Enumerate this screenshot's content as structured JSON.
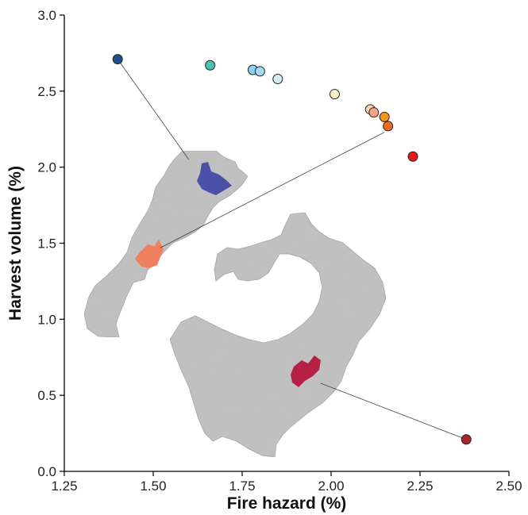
{
  "chart_data": {
    "type": "scatter",
    "title": "",
    "xlabel": "Fire hazard (%)",
    "ylabel": "Harvest volume (%)",
    "xlim": [
      1.25,
      2.5
    ],
    "ylim": [
      0.0,
      3.0
    ],
    "xticks": [
      "1.25",
      "1.50",
      "1.75",
      "2.00",
      "2.25",
      "2.50"
    ],
    "yticks": [
      "0.0",
      "0.5",
      "1.0",
      "1.5",
      "2.0",
      "2.5",
      "3.0"
    ],
    "grid": false,
    "points": [
      {
        "x": 1.4,
        "y": 2.71,
        "color": "#1f4e8c"
      },
      {
        "x": 1.66,
        "y": 2.67,
        "color": "#45c4b6"
      },
      {
        "x": 1.78,
        "y": 2.64,
        "color": "#8fd0ee"
      },
      {
        "x": 1.8,
        "y": 2.63,
        "color": "#a7daf3"
      },
      {
        "x": 1.85,
        "y": 2.58,
        "color": "#d8eef7"
      },
      {
        "x": 2.01,
        "y": 2.48,
        "color": "#fbf4c6"
      },
      {
        "x": 2.11,
        "y": 2.38,
        "color": "#fbd3b4"
      },
      {
        "x": 2.12,
        "y": 2.36,
        "color": "#f4a487"
      },
      {
        "x": 2.15,
        "y": 2.33,
        "color": "#f7941d"
      },
      {
        "x": 2.16,
        "y": 2.27,
        "color": "#f26b21"
      },
      {
        "x": 2.23,
        "y": 2.07,
        "color": "#e41a1c"
      },
      {
        "x": 2.38,
        "y": 0.21,
        "color": "#a8252b"
      }
    ],
    "leader_lines": [
      {
        "from": [
          1.4,
          2.71
        ],
        "to": [
          1.6,
          2.05
        ]
      },
      {
        "from": [
          2.15,
          2.23
        ],
        "to": [
          1.52,
          1.47
        ]
      },
      {
        "from": [
          2.38,
          0.21
        ],
        "to": [
          1.97,
          0.58
        ]
      }
    ],
    "map_inset": {
      "terrain_color": "#bfbfbf",
      "highlight_colors": [
        "#4a4fa8",
        "#f08060",
        "#b52045"
      ]
    }
  }
}
